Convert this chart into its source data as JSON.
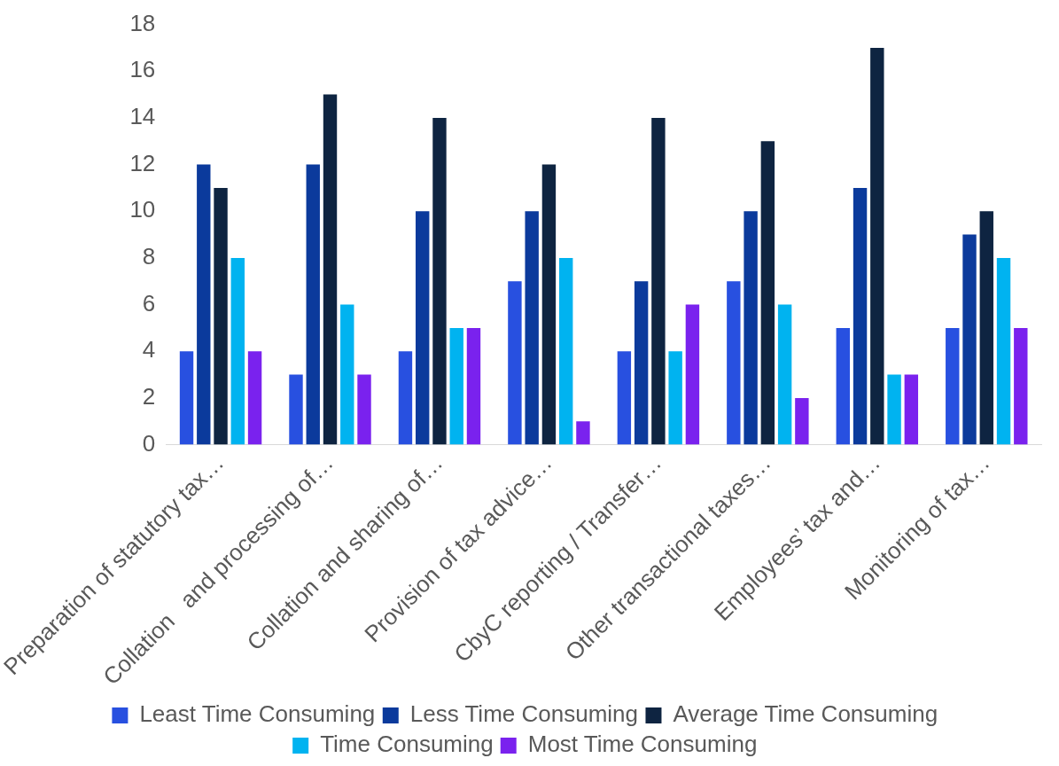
{
  "chart_data": {
    "type": "bar",
    "categories": [
      "Preparation of statutory tax…",
      "Collation   and processing of…",
      "Collation and sharing of…",
      "Provision of tax advice…",
      "CbyC reporting / Transfer…",
      "Other transactional taxes…",
      "Employees’ tax and…",
      "Monitoring of tax…"
    ],
    "series": [
      {
        "name": "Least Time Consuming",
        "color": "#2850e0",
        "values": [
          4,
          3,
          4,
          7,
          4,
          7,
          5,
          5
        ]
      },
      {
        "name": "Less Time Consuming",
        "color": "#0b3a9c",
        "values": [
          12,
          12,
          10,
          10,
          7,
          10,
          11,
          9
        ]
      },
      {
        "name": "Average Time Consuming",
        "color": "#0e2441",
        "values": [
          11,
          15,
          14,
          12,
          14,
          13,
          17,
          10
        ]
      },
      {
        "name": "Time Consuming",
        "color": "#00b3f0",
        "values": [
          8,
          6,
          5,
          8,
          4,
          6,
          3,
          8
        ]
      },
      {
        "name": "Most Time Consuming",
        "color": "#7a22ee",
        "values": [
          4,
          3,
          5,
          1,
          6,
          2,
          3,
          5
        ]
      }
    ],
    "ylim": [
      0,
      18
    ],
    "yticks": [
      0,
      2,
      4,
      6,
      8,
      10,
      12,
      14,
      16,
      18
    ],
    "grid": false,
    "legend": "bottom"
  }
}
